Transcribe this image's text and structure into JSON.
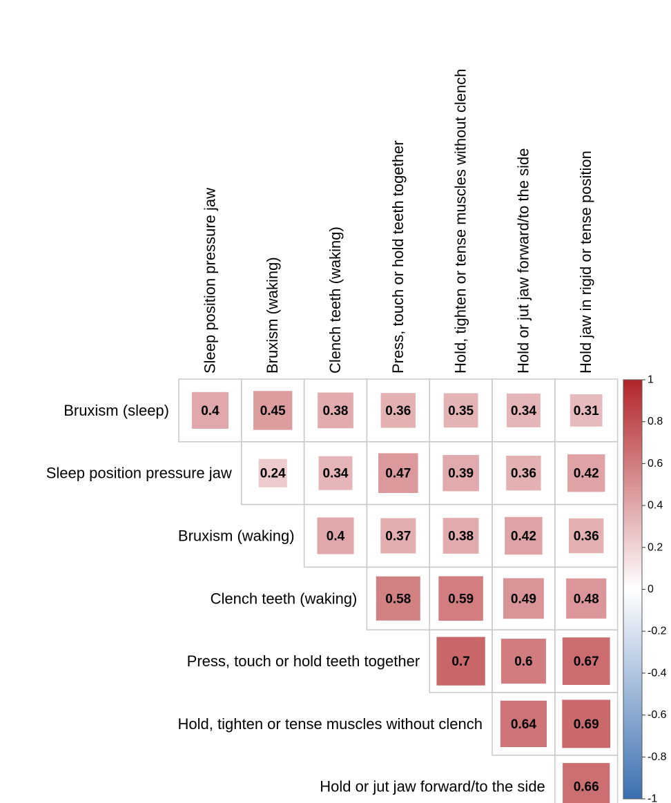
{
  "chart_data": {
    "type": "heatmap",
    "subtype": "upper-triangle correlation matrix (square size and color encode value)",
    "columns": [
      "Sleep position pressure jaw",
      "Bruxism (waking)",
      "Clench teeth (waking)",
      "Press, touch or hold teeth together",
      "Hold, tighten or tense muscles without clench",
      "Hold or jut jaw forward/to the side",
      "Hold jaw in rigid or tense position"
    ],
    "rows": [
      "Bruxism (sleep)",
      "Sleep position pressure jaw",
      "Bruxism (waking)",
      "Clench teeth (waking)",
      "Press, touch or hold teeth together",
      "Hold, tighten or tense muscles without clench",
      "Hold or jut jaw forward/to the side"
    ],
    "values": [
      [
        0.4,
        0.45,
        0.38,
        0.36,
        0.35,
        0.34,
        0.31
      ],
      [
        null,
        0.24,
        0.34,
        0.47,
        0.39,
        0.36,
        0.42
      ],
      [
        null,
        null,
        0.4,
        0.37,
        0.38,
        0.42,
        0.36
      ],
      [
        null,
        null,
        null,
        0.58,
        0.59,
        0.49,
        0.48
      ],
      [
        null,
        null,
        null,
        null,
        0.7,
        0.6,
        0.67
      ],
      [
        null,
        null,
        null,
        null,
        null,
        0.64,
        0.69
      ],
      [
        null,
        null,
        null,
        null,
        null,
        null,
        0.66
      ]
    ],
    "value_labels": [
      [
        "0.4",
        "0.45",
        "0.38",
        "0.36",
        "0.35",
        "0.34",
        "0.31"
      ],
      [
        null,
        "0.24",
        "0.34",
        "0.47",
        "0.39",
        "0.36",
        "0.42"
      ],
      [
        null,
        null,
        "0.4",
        "0.37",
        "0.38",
        "0.42",
        "0.36"
      ],
      [
        null,
        null,
        null,
        "0.58",
        "0.59",
        "0.49",
        "0.48"
      ],
      [
        null,
        null,
        null,
        null,
        "0.7",
        "0.6",
        "0.67"
      ],
      [
        null,
        null,
        null,
        null,
        null,
        "0.64",
        "0.69"
      ],
      [
        null,
        null,
        null,
        null,
        null,
        null,
        "0.66"
      ]
    ],
    "colorbar": {
      "range": [
        -1,
        1
      ],
      "ticks": [
        "1",
        "0.8",
        "0.6",
        "0.4",
        "0.2",
        "0",
        "-0.2",
        "-0.4",
        "-0.6",
        "-0.8",
        "-1"
      ],
      "colors": {
        "negative": "#3b6fb0",
        "zero": "#ffffff",
        "positive": "#b2252a"
      }
    },
    "colors": {
      "grid": "#c8c8c8",
      "text": "#000000"
    },
    "grid": true,
    "legend": "right"
  }
}
